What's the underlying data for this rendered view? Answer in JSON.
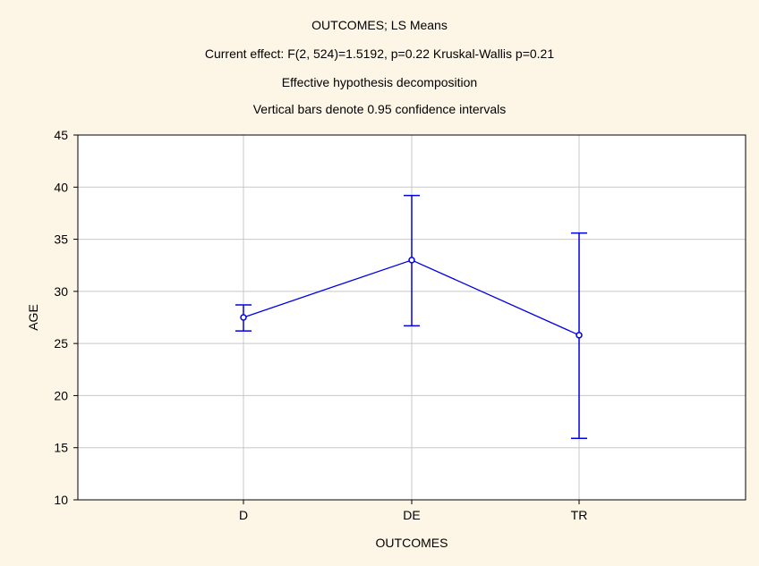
{
  "titles": {
    "line1": "OUTCOMES; LS Means",
    "line2": "Current effect: F(2, 524)=1.5192, p=0.22 Kruskal-Wallis p=0.21",
    "line3": "Effective hypothesis decomposition",
    "line4": "Vertical bars denote 0.95 confidence intervals"
  },
  "colors": {
    "background": "#fdf6e7",
    "plot_area": "#ffffff",
    "series": "#0000e6",
    "gridline": "#c8c8c8"
  },
  "chart_data": {
    "type": "line",
    "title": "OUTCOMES; LS Means",
    "xlabel": "OUTCOMES",
    "ylabel": "AGE",
    "categories": [
      "D",
      "DE",
      "TR"
    ],
    "ylim": [
      10,
      45
    ],
    "yticks": [
      10,
      15,
      20,
      25,
      30,
      35,
      40,
      45
    ],
    "grid": true,
    "series": [
      {
        "values": [
          27.5,
          33.0,
          25.8
        ],
        "ci_lower": [
          26.2,
          26.7,
          15.9
        ],
        "ci_upper": [
          28.7,
          39.2,
          35.6
        ]
      }
    ]
  }
}
